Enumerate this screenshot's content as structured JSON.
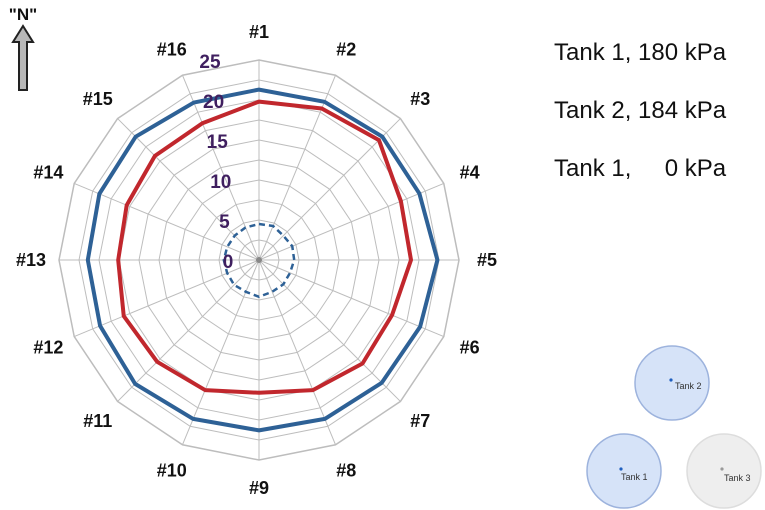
{
  "chart_data": {
    "type": "radar",
    "categories": [
      "#1",
      "#2",
      "#3",
      "#4",
      "#5",
      "#6",
      "#7",
      "#8",
      "#9",
      "#10",
      "#11",
      "#12",
      "#13",
      "#14",
      "#15",
      "#16"
    ],
    "rlim": [
      0,
      25
    ],
    "rticks": [
      0,
      5,
      10,
      15,
      20,
      25
    ],
    "grid_rings": [
      0,
      2.5,
      5,
      7.5,
      10,
      12.5,
      15,
      17.5,
      20,
      22.5,
      25
    ],
    "series": [
      {
        "name": "Tank 1, 180 kPa",
        "color": "#2e6196",
        "style": "solid",
        "values": [
          21.3,
          21.4,
          21.8,
          21.7,
          22.3,
          21.8,
          21.7,
          21.5,
          21.3,
          21.5,
          21.9,
          21.5,
          21.4,
          21.6,
          21.8,
          21.3
        ]
      },
      {
        "name": "Tank 2, 184 kPa",
        "color": "#c1272d",
        "style": "solid",
        "values": [
          19.8,
          20.5,
          21.2,
          19.2,
          19.0,
          18.0,
          18.3,
          17.6,
          16.6,
          17.6,
          18.0,
          18.3,
          17.6,
          17.9,
          18.4,
          18.5
        ]
      },
      {
        "name": "Tank 1,     0 kPa",
        "color": "#2e6196",
        "style": "dashed",
        "values": [
          4.5,
          4.6,
          4.3,
          4.5,
          4.4,
          4.2,
          4.3,
          4.3,
          4.6,
          4.3,
          4.4,
          4.3,
          4.4,
          4.3,
          4.3,
          4.4
        ]
      }
    ]
  },
  "north_label": "\"N\"",
  "tanks": [
    {
      "label": "Tank 2",
      "fill": "#d6e3f8",
      "stroke": "#9db3dd",
      "dot": "#1f5fbf"
    },
    {
      "label": "Tank 1",
      "fill": "#d6e3f8",
      "stroke": "#9db3dd",
      "dot": "#1f5fbf"
    },
    {
      "label": "Tank 3",
      "fill": "#eeeeee",
      "stroke": "#dddddd",
      "dot": "#999999"
    }
  ]
}
